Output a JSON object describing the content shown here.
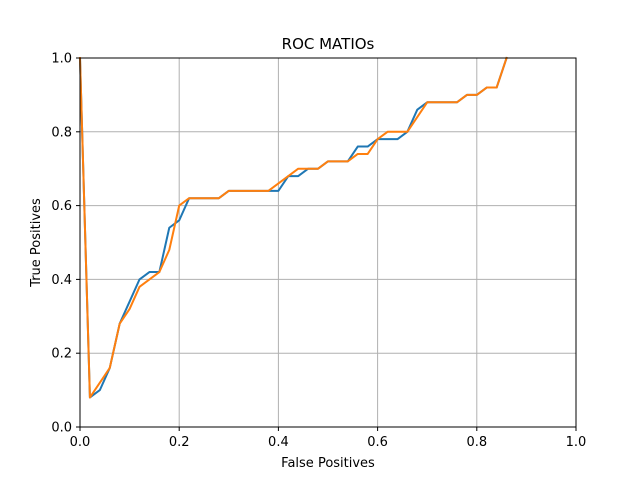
{
  "chart_data": {
    "type": "line",
    "title": "ROC MATIOs",
    "xlabel": "False Positives",
    "ylabel": "True Positives",
    "xlim": [
      0.0,
      1.0
    ],
    "ylim": [
      0.0,
      1.0
    ],
    "xticks": [
      "0.0",
      "0.2",
      "0.4",
      "0.6",
      "0.8",
      "1.0"
    ],
    "yticks": [
      "0.0",
      "0.2",
      "0.4",
      "0.6",
      "0.8",
      "1.0"
    ],
    "grid": true,
    "legend": "none",
    "series": [
      {
        "color": "#1f77b4",
        "x": [
          0.0,
          0.02,
          0.04,
          0.06,
          0.08,
          0.1,
          0.12,
          0.14,
          0.16,
          0.18,
          0.2,
          0.22,
          0.24,
          0.26,
          0.28,
          0.3,
          0.32,
          0.34,
          0.36,
          0.38,
          0.4,
          0.42,
          0.44,
          0.46,
          0.48,
          0.5,
          0.52,
          0.54,
          0.56,
          0.58,
          0.6,
          0.62,
          0.64,
          0.66,
          0.68,
          0.7,
          0.72,
          0.74,
          0.76,
          0.78,
          0.8,
          0.82,
          0.84,
          0.86
        ],
        "y": [
          1.0,
          0.08,
          0.1,
          0.16,
          0.28,
          0.34,
          0.4,
          0.42,
          0.42,
          0.54,
          0.56,
          0.62,
          0.62,
          0.62,
          0.62,
          0.64,
          0.64,
          0.64,
          0.64,
          0.64,
          0.64,
          0.68,
          0.68,
          0.7,
          0.7,
          0.72,
          0.72,
          0.72,
          0.76,
          0.76,
          0.78,
          0.78,
          0.78,
          0.8,
          0.86,
          0.88,
          0.88,
          0.88,
          0.88,
          0.9,
          0.9,
          0.92,
          0.92,
          1.0
        ]
      },
      {
        "color": "#ff7f0e",
        "x": [
          0.0,
          0.02,
          0.04,
          0.06,
          0.08,
          0.1,
          0.12,
          0.14,
          0.16,
          0.18,
          0.2,
          0.22,
          0.24,
          0.26,
          0.28,
          0.3,
          0.32,
          0.34,
          0.36,
          0.38,
          0.4,
          0.42,
          0.44,
          0.46,
          0.48,
          0.5,
          0.52,
          0.54,
          0.56,
          0.58,
          0.6,
          0.62,
          0.64,
          0.66,
          0.68,
          0.7,
          0.72,
          0.74,
          0.76,
          0.78,
          0.8,
          0.82,
          0.84,
          0.86
        ],
        "y": [
          1.0,
          0.08,
          0.12,
          0.16,
          0.28,
          0.32,
          0.38,
          0.4,
          0.42,
          0.48,
          0.6,
          0.62,
          0.62,
          0.62,
          0.62,
          0.64,
          0.64,
          0.64,
          0.64,
          0.64,
          0.66,
          0.68,
          0.7,
          0.7,
          0.7,
          0.72,
          0.72,
          0.72,
          0.74,
          0.74,
          0.78,
          0.8,
          0.8,
          0.8,
          0.84,
          0.88,
          0.88,
          0.88,
          0.88,
          0.9,
          0.9,
          0.92,
          0.92,
          1.0
        ]
      }
    ]
  }
}
